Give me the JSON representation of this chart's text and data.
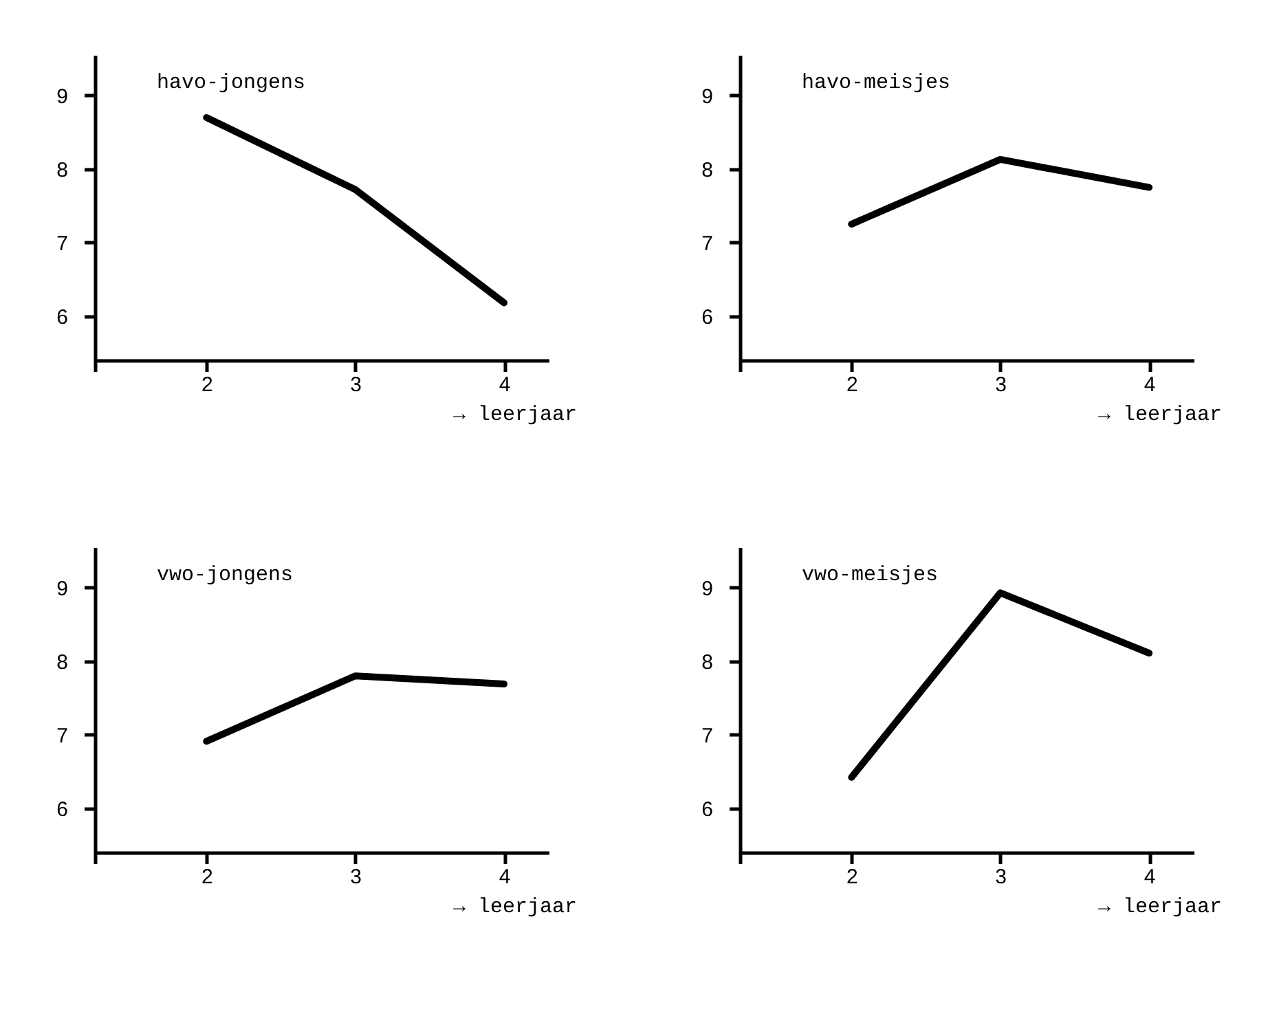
{
  "chart_data": [
    {
      "type": "line",
      "title": "havo-jongens",
      "xlabel": "→ leerjaar",
      "x": [
        2,
        3,
        4
      ],
      "series": [
        {
          "color": "#000000",
          "values": [
            8.7,
            7.72,
            6.18
          ]
        }
      ],
      "xlim": [
        1.25,
        4.3
      ],
      "xticks": [
        2,
        3,
        4
      ],
      "ylim": [
        5.25,
        9.55
      ],
      "yticks": [
        6,
        7,
        8,
        9
      ],
      "grid": false,
      "marker": "none",
      "line_style": "solid",
      "legend": false
    },
    {
      "type": "line",
      "title": "havo-meisjes",
      "xlabel": "→ leerjaar",
      "x": [
        2,
        3,
        4
      ],
      "series": [
        {
          "color": "#000000",
          "values": [
            7.25,
            8.13,
            7.75
          ]
        }
      ],
      "xlim": [
        1.25,
        4.3
      ],
      "xticks": [
        2,
        3,
        4
      ],
      "ylim": [
        5.25,
        9.55
      ],
      "yticks": [
        6,
        7,
        8,
        9
      ],
      "grid": false,
      "marker": "none",
      "line_style": "solid",
      "legend": false
    },
    {
      "type": "line",
      "title": "vwo-jongens",
      "xlabel": "→ leerjaar",
      "x": [
        2,
        3,
        4
      ],
      "series": [
        {
          "color": "#000000",
          "values": [
            6.91,
            7.8,
            7.69
          ]
        }
      ],
      "xlim": [
        1.25,
        4.3
      ],
      "xticks": [
        2,
        3,
        4
      ],
      "ylim": [
        5.25,
        9.55
      ],
      "yticks": [
        6,
        7,
        8,
        9
      ],
      "grid": false,
      "marker": "none",
      "line_style": "solid",
      "legend": false
    },
    {
      "type": "line",
      "title": "vwo-meisjes",
      "xlabel": "→ leerjaar",
      "x": [
        2,
        3,
        4
      ],
      "series": [
        {
          "color": "#000000",
          "values": [
            6.42,
            8.93,
            8.11
          ]
        }
      ],
      "xlim": [
        1.25,
        4.3
      ],
      "xticks": [
        2,
        3,
        4
      ],
      "ylim": [
        5.25,
        9.55
      ],
      "yticks": [
        6,
        7,
        8,
        9
      ],
      "grid": false,
      "marker": "none",
      "line_style": "solid",
      "legend": false
    }
  ]
}
